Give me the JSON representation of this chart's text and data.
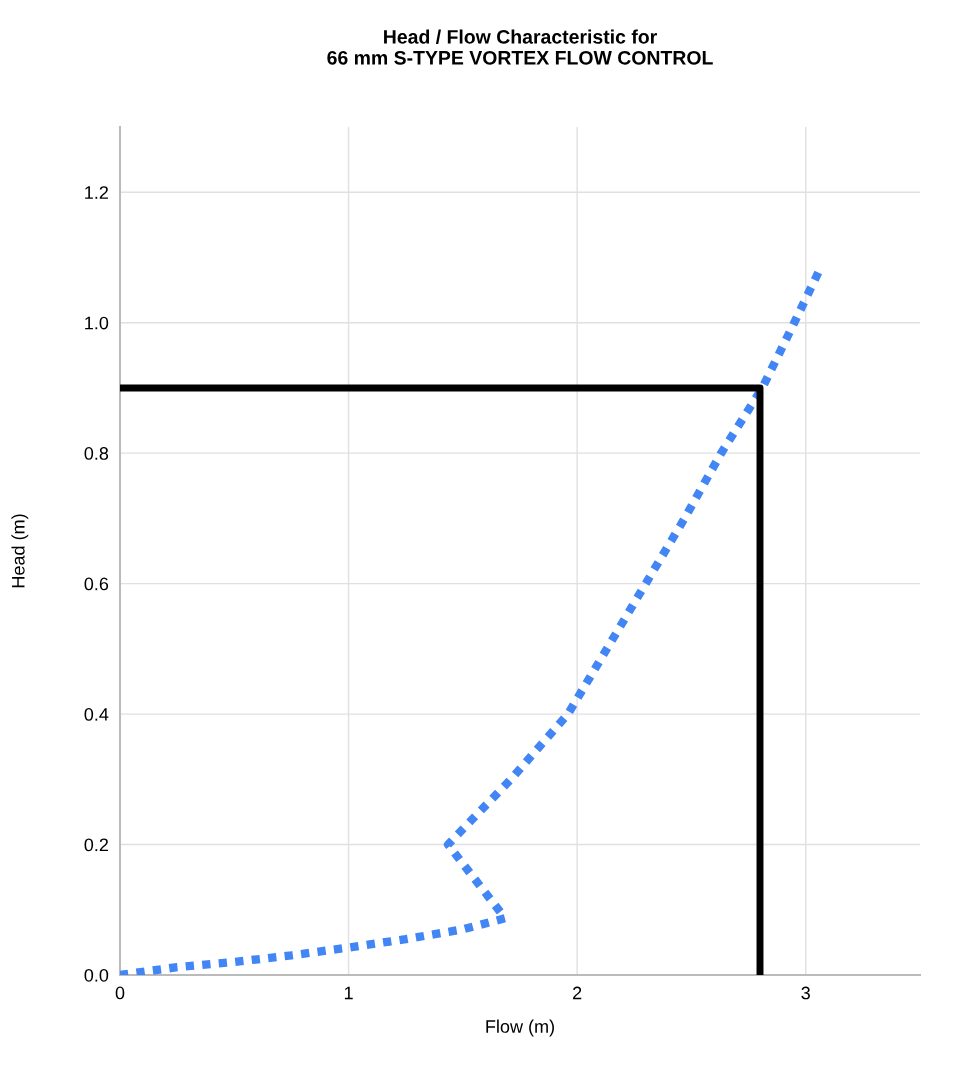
{
  "chart_data": {
    "type": "line",
    "title": "Head / Flow Characteristic for\n66 mm S-TYPE VORTEX FLOW CONTROL",
    "xlabel": "Flow (m)",
    "ylabel": "Head (m)",
    "series": [
      {
        "color": "#4285f4",
        "line_style": "dotted",
        "x": [
          0,
          0.25,
          0.5,
          0.75,
          1.0,
          1.25,
          1.5,
          1.685,
          1.435,
          1.71,
          1.96,
          2.13,
          2.3,
          2.47,
          2.63,
          2.81,
          2.95,
          3.055
        ],
        "values": [
          0,
          0.012,
          0.02,
          0.03,
          0.042,
          0.055,
          0.07,
          0.087,
          0.2,
          0.3,
          0.4,
          0.5,
          0.6,
          0.7,
          0.8,
          0.9,
          1.0,
          1.077
        ]
      },
      {
        "color": "#000000",
        "line_style": "solid",
        "x": [
          0,
          2.8,
          2.8
        ],
        "values": [
          0.9,
          0.9,
          0
        ]
      }
    ],
    "xlim": [
      0,
      3.5
    ],
    "ylim": [
      0,
      1.3
    ],
    "xticks": [
      0,
      1,
      2,
      3
    ],
    "yticks": [
      {
        "value": 0,
        "label": "0.0"
      },
      {
        "value": 0.2,
        "label": "0.2"
      },
      {
        "value": 0.4,
        "label": "0.4"
      },
      {
        "value": 0.6,
        "label": "0.6"
      },
      {
        "value": 0.8,
        "label": "0.8"
      },
      {
        "value": 1.0,
        "label": "1.0"
      },
      {
        "value": 1.2,
        "label": "1.2"
      }
    ],
    "grid": true,
    "marker": "none"
  }
}
